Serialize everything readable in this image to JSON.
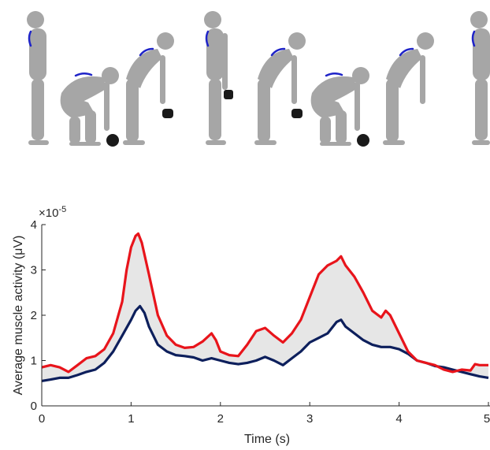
{
  "chart_data": {
    "type": "area",
    "xlabel": "Time (s)",
    "ylabel": "Average muscle activity (μV)",
    "y_exponent_label": "×10",
    "y_exponent_power": "-5",
    "xlim": [
      0,
      5
    ],
    "ylim": [
      0,
      4
    ],
    "x_ticks": [
      "0",
      "1",
      "2",
      "3",
      "4",
      "5"
    ],
    "y_ticks": [
      "0",
      "1",
      "2",
      "3",
      "4"
    ],
    "grid": false,
    "shaded_band": "between series",
    "series": [
      {
        "color": "#e8141b",
        "points": [
          [
            0,
            0.85
          ],
          [
            0.1,
            0.9
          ],
          [
            0.2,
            0.85
          ],
          [
            0.3,
            0.75
          ],
          [
            0.4,
            0.9
          ],
          [
            0.5,
            1.05
          ],
          [
            0.6,
            1.1
          ],
          [
            0.7,
            1.25
          ],
          [
            0.8,
            1.6
          ],
          [
            0.9,
            2.3
          ],
          [
            0.95,
            3.0
          ],
          [
            1.0,
            3.5
          ],
          [
            1.05,
            3.75
          ],
          [
            1.08,
            3.8
          ],
          [
            1.12,
            3.6
          ],
          [
            1.2,
            2.9
          ],
          [
            1.3,
            2.0
          ],
          [
            1.4,
            1.55
          ],
          [
            1.5,
            1.35
          ],
          [
            1.6,
            1.28
          ],
          [
            1.7,
            1.3
          ],
          [
            1.8,
            1.42
          ],
          [
            1.9,
            1.6
          ],
          [
            1.95,
            1.45
          ],
          [
            2.0,
            1.2
          ],
          [
            2.1,
            1.12
          ],
          [
            2.2,
            1.1
          ],
          [
            2.3,
            1.35
          ],
          [
            2.4,
            1.65
          ],
          [
            2.5,
            1.72
          ],
          [
            2.6,
            1.55
          ],
          [
            2.7,
            1.4
          ],
          [
            2.8,
            1.6
          ],
          [
            2.9,
            1.9
          ],
          [
            3.0,
            2.4
          ],
          [
            3.1,
            2.9
          ],
          [
            3.2,
            3.1
          ],
          [
            3.3,
            3.2
          ],
          [
            3.35,
            3.3
          ],
          [
            3.4,
            3.1
          ],
          [
            3.5,
            2.85
          ],
          [
            3.6,
            2.5
          ],
          [
            3.7,
            2.1
          ],
          [
            3.8,
            1.95
          ],
          [
            3.85,
            2.1
          ],
          [
            3.9,
            2.0
          ],
          [
            4.0,
            1.6
          ],
          [
            4.1,
            1.2
          ],
          [
            4.2,
            1.0
          ],
          [
            4.3,
            0.95
          ],
          [
            4.4,
            0.9
          ],
          [
            4.5,
            0.8
          ],
          [
            4.6,
            0.75
          ],
          [
            4.7,
            0.8
          ],
          [
            4.8,
            0.78
          ],
          [
            4.85,
            0.92
          ],
          [
            4.9,
            0.9
          ],
          [
            5.0,
            0.9
          ]
        ]
      },
      {
        "color": "#0d1f5c",
        "points": [
          [
            0,
            0.55
          ],
          [
            0.1,
            0.58
          ],
          [
            0.2,
            0.62
          ],
          [
            0.3,
            0.62
          ],
          [
            0.4,
            0.68
          ],
          [
            0.5,
            0.75
          ],
          [
            0.6,
            0.8
          ],
          [
            0.7,
            0.95
          ],
          [
            0.8,
            1.2
          ],
          [
            0.9,
            1.55
          ],
          [
            1.0,
            1.9
          ],
          [
            1.05,
            2.1
          ],
          [
            1.1,
            2.2
          ],
          [
            1.15,
            2.05
          ],
          [
            1.2,
            1.75
          ],
          [
            1.3,
            1.35
          ],
          [
            1.4,
            1.2
          ],
          [
            1.5,
            1.12
          ],
          [
            1.6,
            1.1
          ],
          [
            1.7,
            1.07
          ],
          [
            1.8,
            1.0
          ],
          [
            1.9,
            1.05
          ],
          [
            2.0,
            1.0
          ],
          [
            2.1,
            0.95
          ],
          [
            2.2,
            0.92
          ],
          [
            2.3,
            0.95
          ],
          [
            2.4,
            1.0
          ],
          [
            2.5,
            1.08
          ],
          [
            2.6,
            1.0
          ],
          [
            2.7,
            0.9
          ],
          [
            2.8,
            1.05
          ],
          [
            2.9,
            1.2
          ],
          [
            3.0,
            1.4
          ],
          [
            3.1,
            1.5
          ],
          [
            3.2,
            1.6
          ],
          [
            3.3,
            1.85
          ],
          [
            3.35,
            1.9
          ],
          [
            3.4,
            1.75
          ],
          [
            3.5,
            1.6
          ],
          [
            3.6,
            1.45
          ],
          [
            3.7,
            1.35
          ],
          [
            3.8,
            1.3
          ],
          [
            3.9,
            1.3
          ],
          [
            4.0,
            1.25
          ],
          [
            4.1,
            1.15
          ],
          [
            4.2,
            1.0
          ],
          [
            4.3,
            0.95
          ],
          [
            4.4,
            0.88
          ],
          [
            4.5,
            0.85
          ],
          [
            4.6,
            0.8
          ],
          [
            4.7,
            0.75
          ],
          [
            4.8,
            0.7
          ],
          [
            4.9,
            0.65
          ],
          [
            5.0,
            0.62
          ]
        ]
      }
    ]
  },
  "illustration": {
    "figures": [
      {
        "pose": "standing",
        "weight": false
      },
      {
        "pose": "squat-lift",
        "weight": true
      },
      {
        "pose": "hinge-hold",
        "weight": true
      },
      {
        "pose": "standing-hold",
        "weight": true
      },
      {
        "pose": "hinge-hold",
        "weight": true
      },
      {
        "pose": "squat-lift",
        "weight": true
      },
      {
        "pose": "hinge-empty",
        "weight": false
      },
      {
        "pose": "standing",
        "weight": false
      }
    ],
    "figure_color": "#a6a6a6",
    "weight_color": "#1a1a1a",
    "back_curve_color": "#1f24c8"
  }
}
